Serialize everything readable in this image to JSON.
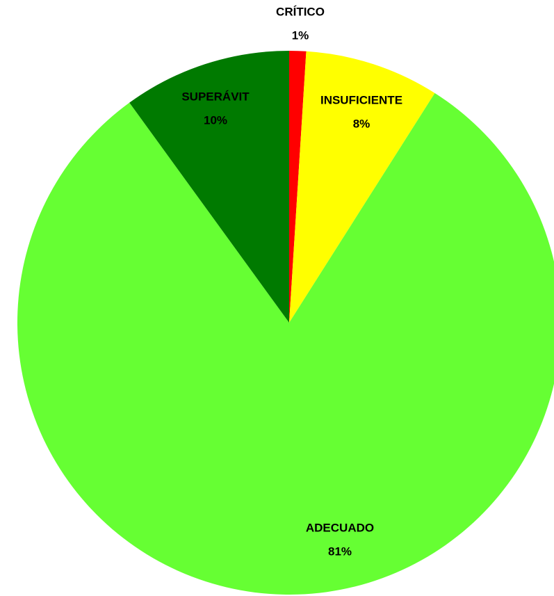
{
  "chart_data": {
    "type": "pie",
    "categories": [
      "CRÍTICO",
      "INSUFICIENTE",
      "ADECUADO",
      "SUPERÁVIT"
    ],
    "values": [
      1,
      8,
      81,
      10
    ],
    "value_labels": [
      "1%",
      "8%",
      "81%",
      "10%"
    ],
    "colors": [
      "#ff0000",
      "#ffff00",
      "#66ff33",
      "#007a00"
    ]
  }
}
